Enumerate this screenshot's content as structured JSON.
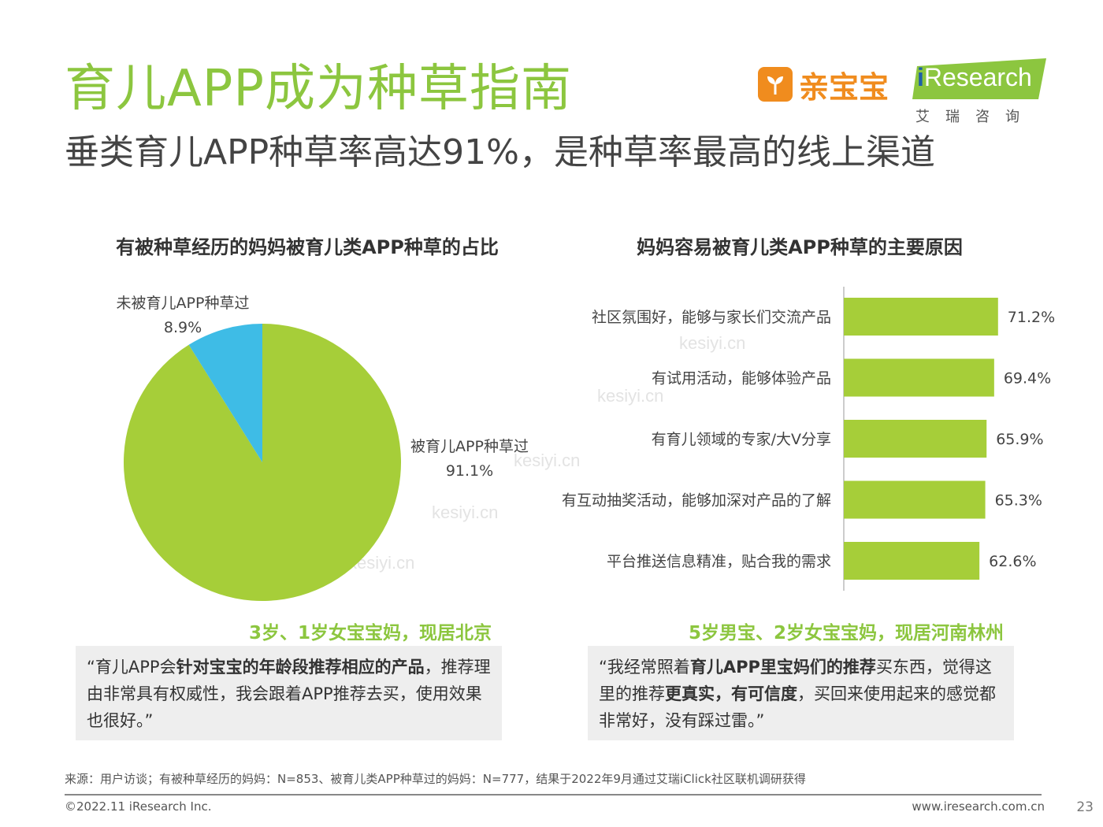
{
  "header": {
    "title": "育儿APP成为种草指南",
    "subtitle": "垂类育儿APP种草率高达91%，是种草率最高的线上渠道"
  },
  "logos": {
    "qinbaobao": "亲宝宝",
    "iresearch_i": "i",
    "iresearch_rest": "Research",
    "iresearch_sub": "艾瑞咨询"
  },
  "watermark": "kesiyi.cn",
  "chart_data": [
    {
      "type": "pie",
      "title": "有被种草经历的妈妈被育儿类APP种草的占比",
      "slices": [
        {
          "label": "被育儿APP种草过",
          "value": 91.1,
          "display": "91.1%",
          "color": "#A6CE39"
        },
        {
          "label": "未被育儿APP种草过",
          "value": 8.9,
          "display": "8.9%",
          "color": "#3EBCE6"
        }
      ]
    },
    {
      "type": "bar",
      "orientation": "horizontal",
      "title": "妈妈容易被育儿类APP种草的主要原因",
      "color": "#A6CE39",
      "categories": [
        "社区氛围好，能够与家长们交流产品",
        "有试用活动，能够体验产品",
        "有育儿领域的专家/大V分享",
        "有互动抽奖活动，能够加深对产品的了解",
        "平台推送信息精准，贴合我的需求"
      ],
      "values": [
        71.2,
        69.4,
        65.9,
        65.3,
        62.6
      ],
      "labels": [
        "71.2%",
        "69.4%",
        "65.9%",
        "65.3%",
        "62.6%"
      ],
      "xlim": [
        0,
        100
      ]
    }
  ],
  "quotes": [
    {
      "title": "3岁、1岁女宝宝妈，现居北京",
      "p1": "“育儿APP会",
      "b1": "针对宝宝的年龄段推荐相应的产品",
      "p2": "，推荐理由非常具有权威性，我会跟着APP推荐去买，使用效果也很好。”"
    },
    {
      "title": "5岁男宝、2岁女宝宝妈，现居河南林州",
      "p1": "“我经常照着",
      "b1": "育儿APP里宝妈们的推荐",
      "p2": "买东西，觉得这里的推荐",
      "b2": "更真实，有可信度",
      "p3": "，买回来使用起来的感觉都非常好，没有踩过雷。”"
    }
  ],
  "footer": {
    "source": "来源：用户访谈；有被种草经历的妈妈：N=853、被育儿类APP种草过的妈妈：N=777，结果于2022年9月通过艾瑞iClick社区联机调研获得",
    "copyright": "©2022.11 iResearch Inc.",
    "url": "www.iresearch.com.cn",
    "page": "23"
  }
}
